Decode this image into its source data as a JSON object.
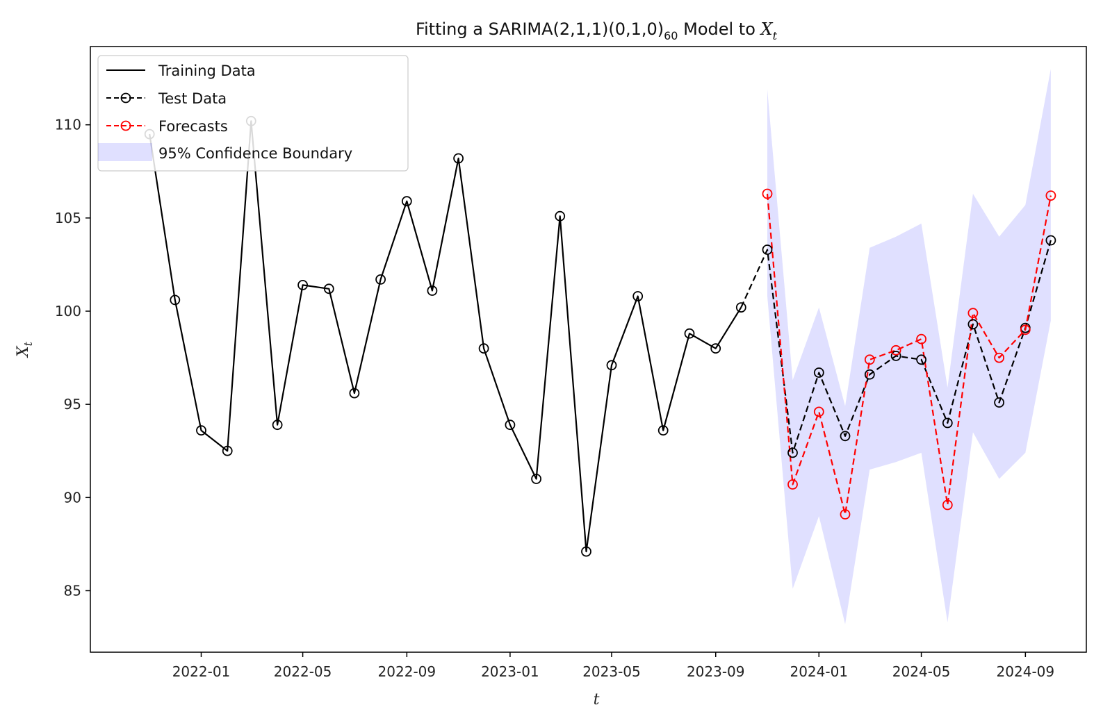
{
  "chart_data": {
    "type": "line",
    "title": {
      "prefix": "Fitting a SARIMA(2,1,1)(0,1,0)",
      "subscript": "60",
      "middle": " Model to ",
      "var": "X",
      "var_sub": "t"
    },
    "xlabel": "t",
    "ylabel": {
      "var": "X",
      "sub": "t"
    },
    "x_ticks": [
      "2022-01",
      "2022-05",
      "2022-09",
      "2023-01",
      "2023-05",
      "2023-09",
      "2024-01",
      "2024-05",
      "2024-09"
    ],
    "y_ticks": [
      85,
      90,
      95,
      100,
      105,
      110
    ],
    "ylim": [
      81.7,
      114.2
    ],
    "xlim": [
      "2021-08-23",
      "2024-11-12"
    ],
    "grid": false,
    "legend": {
      "position": "top-left",
      "entries": [
        "Training Data",
        "Test Data",
        "Forecasts",
        "95% Confidence Boundary"
      ]
    },
    "colors": {
      "training": "#000000",
      "test": "#000000",
      "forecast": "#ff0000",
      "confidence": "#0000ff"
    },
    "series": [
      {
        "name": "Training Data",
        "style": "solid",
        "marker": "open-circle",
        "x": [
          "2021-11-01",
          "2021-12-01",
          "2022-01-01",
          "2022-02-01",
          "2022-03-01",
          "2022-04-01",
          "2022-05-01",
          "2022-06-01",
          "2022-07-01",
          "2022-08-01",
          "2022-09-01",
          "2022-10-01",
          "2022-11-01",
          "2022-12-01",
          "2023-01-01",
          "2023-02-01",
          "2023-03-01",
          "2023-04-01",
          "2023-05-01",
          "2023-06-01",
          "2023-07-01",
          "2023-08-01",
          "2023-09-01",
          "2023-10-01"
        ],
        "y": [
          109.5,
          100.6,
          93.6,
          92.5,
          110.2,
          93.9,
          101.4,
          101.2,
          95.6,
          101.7,
          105.9,
          101.1,
          108.2,
          98.0,
          93.9,
          91.0,
          105.1,
          87.1,
          97.1,
          100.8,
          93.6,
          98.8,
          98.0,
          100.2
        ]
      },
      {
        "name": "Test Data",
        "style": "dashed",
        "marker": "open-circle",
        "x": [
          "2023-11-01",
          "2023-12-01",
          "2024-01-01",
          "2024-02-01",
          "2024-03-01",
          "2024-04-01",
          "2024-05-01",
          "2024-06-01",
          "2024-07-01",
          "2024-08-01",
          "2024-09-01",
          "2024-10-01"
        ],
        "y": [
          103.3,
          92.4,
          96.7,
          93.3,
          96.6,
          97.6,
          97.4,
          94.0,
          99.3,
          95.1,
          99.1,
          103.8
        ]
      },
      {
        "name": "Forecasts",
        "style": "dashed",
        "marker": "open-circle",
        "x": [
          "2023-11-01",
          "2023-12-01",
          "2024-01-01",
          "2024-02-01",
          "2024-03-01",
          "2024-04-01",
          "2024-05-01",
          "2024-06-01",
          "2024-07-01",
          "2024-08-01",
          "2024-09-01",
          "2024-10-01"
        ],
        "y": [
          106.3,
          90.7,
          94.6,
          89.1,
          97.4,
          97.9,
          98.5,
          89.6,
          99.9,
          97.5,
          99.0,
          106.2
        ]
      }
    ],
    "confidence_band": {
      "name": "95% Confidence Boundary",
      "x": [
        "2023-11-01",
        "2023-12-01",
        "2024-01-01",
        "2024-02-01",
        "2024-03-01",
        "2024-04-01",
        "2024-05-01",
        "2024-06-01",
        "2024-07-01",
        "2024-08-01",
        "2024-09-01",
        "2024-10-01"
      ],
      "lower": [
        100.8,
        85.1,
        89.0,
        83.2,
        91.5,
        91.9,
        92.4,
        83.3,
        93.5,
        91.0,
        92.4,
        99.5
      ],
      "upper": [
        111.9,
        96.3,
        100.2,
        94.9,
        103.4,
        104.0,
        104.7,
        95.9,
        106.3,
        104.0,
        105.7,
        113.0
      ]
    }
  }
}
